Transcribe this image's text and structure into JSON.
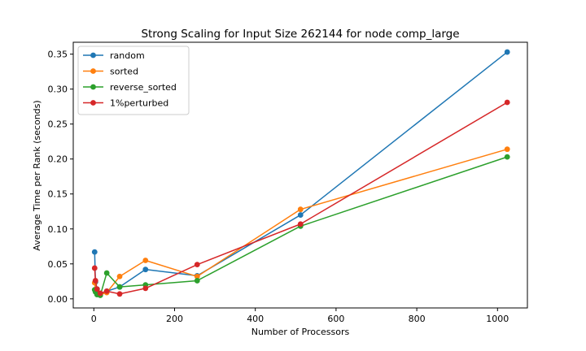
{
  "chart_data": {
    "type": "line",
    "title": "Strong Scaling for Input Size 262144 for node comp_large",
    "xlabel": "Number of Processors",
    "ylabel": "Average Time per Rank (seconds)",
    "xlim": [
      -51,
      1074
    ],
    "ylim": [
      -0.013,
      0.367
    ],
    "xticks": [
      0,
      200,
      400,
      600,
      800,
      1000
    ],
    "xtick_labels": [
      "0",
      "200",
      "400",
      "600",
      "800",
      "1000"
    ],
    "yticks": [
      0.0,
      0.05,
      0.1,
      0.15,
      0.2,
      0.25,
      0.3,
      0.35
    ],
    "ytick_labels": [
      "0.00",
      "0.05",
      "0.10",
      "0.15",
      "0.20",
      "0.25",
      "0.30",
      "0.35"
    ],
    "grid": false,
    "legend_position": "top-left",
    "x": [
      2,
      4,
      8,
      16,
      32,
      64,
      128,
      256,
      512,
      1024
    ],
    "series": [
      {
        "name": "random",
        "color": "#1f77b4",
        "values": [
          0.067,
          0.024,
          0.014,
          0.007,
          0.011,
          0.017,
          0.042,
          0.033,
          0.12,
          0.353
        ]
      },
      {
        "name": "sorted",
        "color": "#ff7f0e",
        "values": [
          0.023,
          0.013,
          0.008,
          0.006,
          0.009,
          0.032,
          0.055,
          0.032,
          0.128,
          0.214
        ]
      },
      {
        "name": "reverse_sorted",
        "color": "#2ca02c",
        "values": [
          0.013,
          0.01,
          0.006,
          0.005,
          0.037,
          0.017,
          0.02,
          0.026,
          0.104,
          0.203
        ]
      },
      {
        "name": "1%perturbed",
        "color": "#d62728",
        "values": [
          0.044,
          0.026,
          0.014,
          0.008,
          0.011,
          0.007,
          0.015,
          0.049,
          0.107,
          0.281
        ]
      }
    ]
  }
}
